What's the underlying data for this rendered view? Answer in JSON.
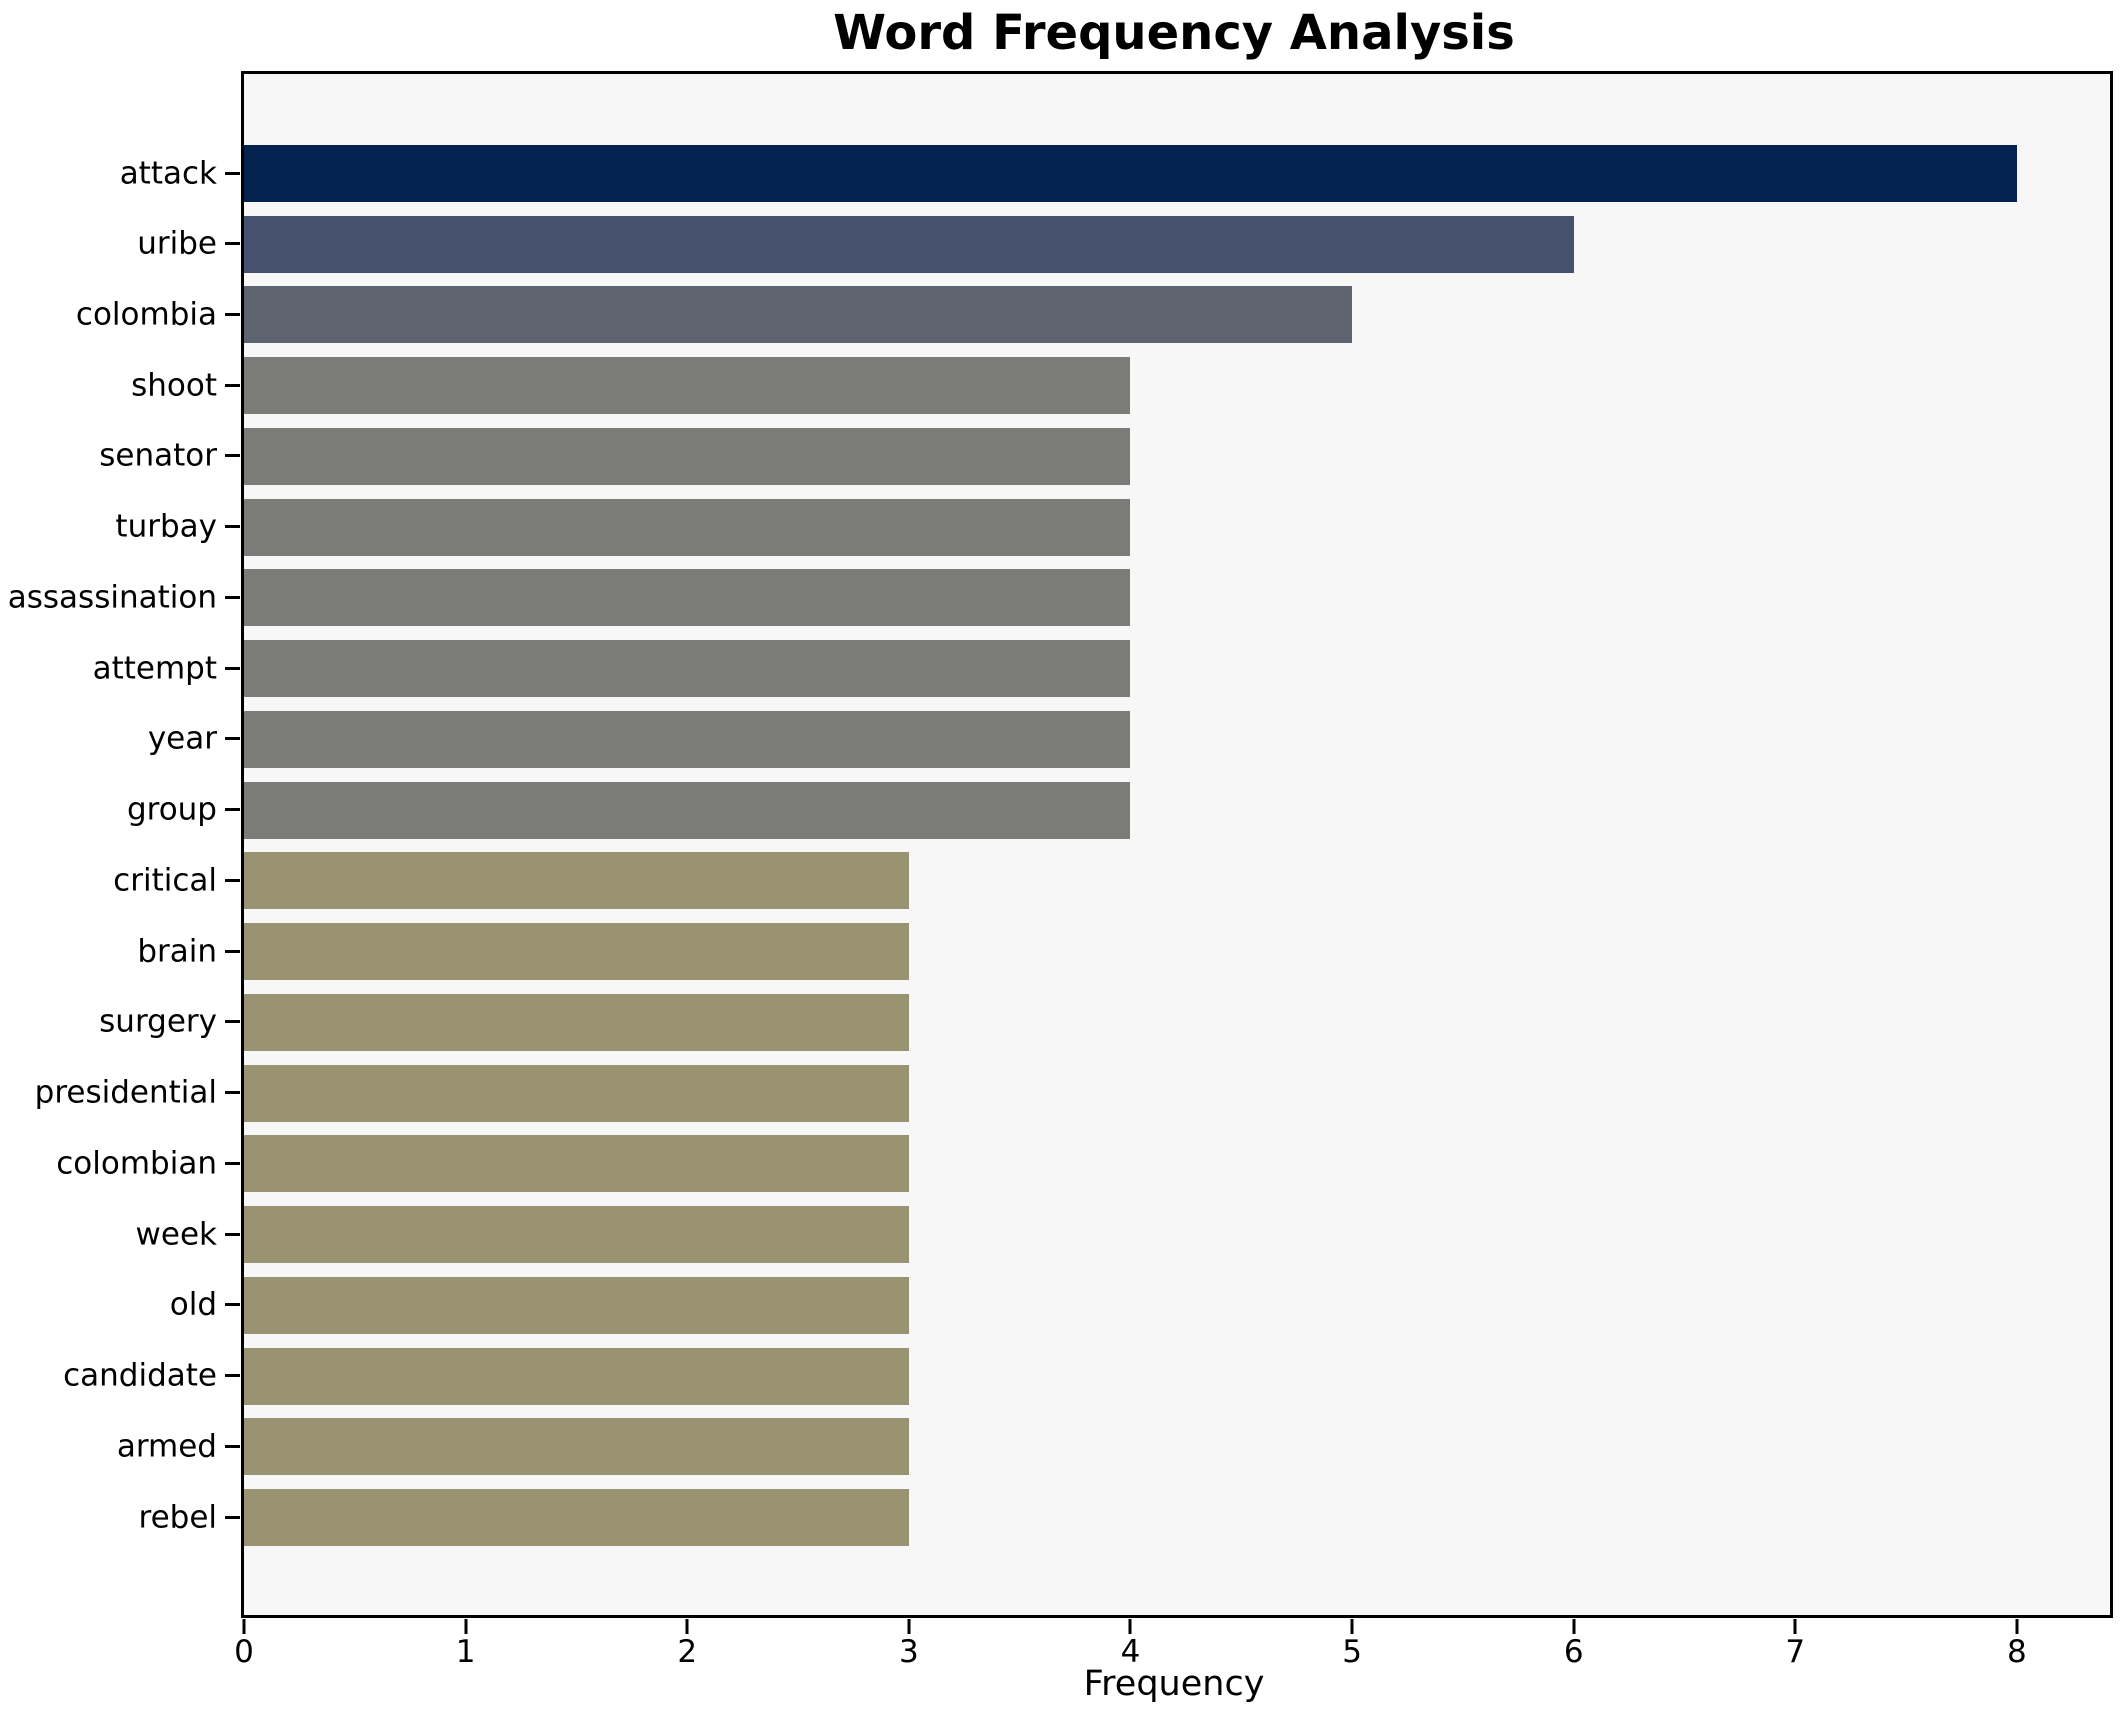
{
  "chart_data": {
    "type": "bar",
    "orientation": "horizontal",
    "title": "Word Frequency Analysis",
    "xlabel": "Frequency",
    "ylabel": "",
    "categories": [
      "attack",
      "uribe",
      "colombia",
      "shoot",
      "senator",
      "turbay",
      "assassination",
      "attempt",
      "year",
      "group",
      "critical",
      "brain",
      "surgery",
      "presidential",
      "colombian",
      "week",
      "old",
      "candidate",
      "armed",
      "rebel"
    ],
    "values": [
      8,
      6,
      5,
      4,
      4,
      4,
      4,
      4,
      4,
      4,
      3,
      3,
      3,
      3,
      3,
      3,
      3,
      3,
      3,
      3
    ],
    "bar_colors": [
      "#03234e",
      "#465170",
      "#5e6370",
      "#7b7b78",
      "#7b7b78",
      "#7b7b78",
      "#7b7b78",
      "#7b7b78",
      "#7b7b78",
      "#7b7b78",
      "#9a9372",
      "#9a9372",
      "#9a9372",
      "#9a9372",
      "#9a9372",
      "#9a9372",
      "#9a9372",
      "#9a9372",
      "#9a9372",
      "#9a9372"
    ],
    "xticks": [
      "0",
      "1",
      "2",
      "3",
      "4",
      "5",
      "6",
      "7",
      "8"
    ],
    "xlim": [
      0,
      8.42
    ],
    "grid": false,
    "legend_position": "none",
    "plot_background": "#f7f7f7",
    "figure_background": "#ffffff",
    "text_color": "#000000"
  }
}
